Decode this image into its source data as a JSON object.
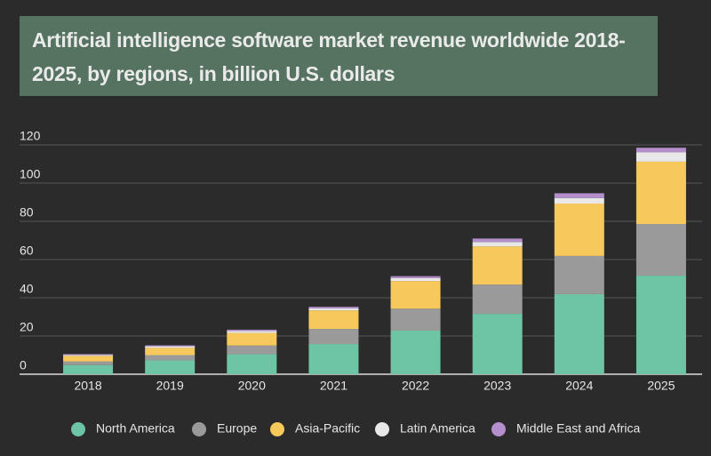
{
  "chart_data": {
    "type": "stacked_bar",
    "title": "Artificial intelligence software market revenue worldwide 2018-2025, by regions, in billion U.S. dollars",
    "categories": [
      "2018",
      "2019",
      "2020",
      "2021",
      "2022",
      "2023",
      "2024",
      "2025"
    ],
    "series": [
      {
        "name": "North America",
        "color": "#6dc5a5",
        "values": [
          4.8,
          7.2,
          10.5,
          15.8,
          22.8,
          31.6,
          41.9,
          51.6
        ]
      },
      {
        "name": "Europe",
        "color": "#9a9a9a",
        "values": [
          1.9,
          2.8,
          4.5,
          7.9,
          11.5,
          15.3,
          20.0,
          27.0
        ]
      },
      {
        "name": "Asia-Pacific",
        "color": "#f7c95c",
        "values": [
          2.9,
          3.8,
          6.6,
          9.7,
          14.5,
          20.0,
          27.4,
          32.6
        ]
      },
      {
        "name": "Latin America",
        "color": "#e8e8e8",
        "values": [
          0.5,
          0.8,
          1.0,
          1.1,
          1.5,
          2.3,
          2.9,
          5.0
        ]
      },
      {
        "name": "Middle East and Africa",
        "color": "#b48fcc",
        "values": [
          0.4,
          0.5,
          0.7,
          0.8,
          1.0,
          1.8,
          2.5,
          2.3
        ]
      }
    ],
    "ylim": [
      0,
      120
    ],
    "yticks": [
      0,
      20,
      40,
      60,
      80,
      100,
      120
    ],
    "grid": true,
    "legend": "bottom"
  }
}
